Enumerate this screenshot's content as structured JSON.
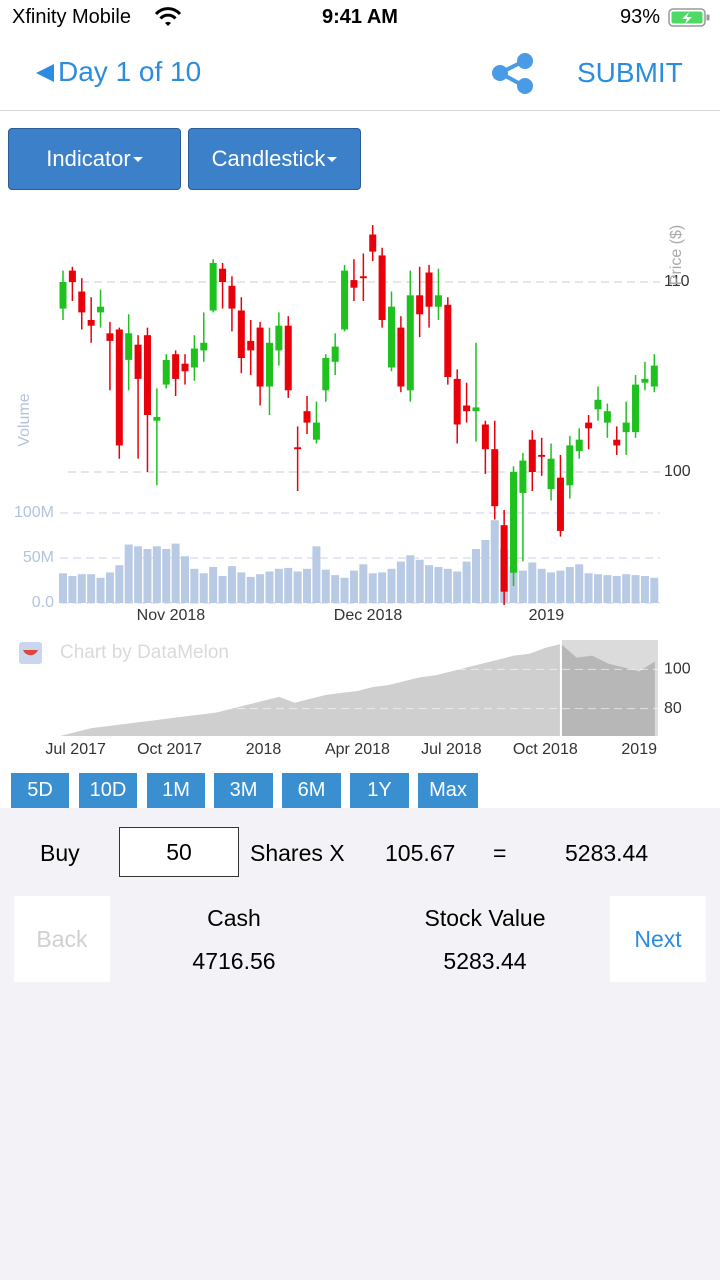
{
  "status_bar": {
    "carrier": "Xfinity Mobile",
    "time": "9:41 AM",
    "battery": "93%"
  },
  "nav": {
    "title": "Day 1 of 10",
    "action": "SUBMIT"
  },
  "toolbar": {
    "indicator": "Indicator",
    "chart_type": "Candlestick"
  },
  "watermark": "Chart by DataMelon",
  "chart_data": [
    {
      "type": "candlestick",
      "categories": [
        null,
        null,
        null,
        null,
        null,
        null,
        null,
        null,
        null,
        null,
        null,
        null,
        null,
        null,
        null,
        null,
        null,
        null,
        null,
        null,
        null,
        null,
        null,
        null,
        null,
        null,
        null,
        null,
        null,
        null,
        null,
        null,
        null,
        null,
        null,
        null,
        null,
        null,
        null,
        null,
        null,
        null,
        null,
        null,
        null,
        null,
        null,
        null,
        null,
        null,
        null,
        null,
        null,
        null,
        null,
        null,
        null,
        null,
        null,
        null,
        null,
        null,
        null,
        null
      ],
      "open": [
        108.6,
        110.6,
        109.5,
        108,
        108.4,
        107.3,
        107.5,
        105.9,
        106.7,
        107.2,
        102.7,
        104.6,
        106.2,
        105.7,
        105.5,
        106.4,
        108.5,
        110.7,
        109.8,
        108.5,
        106.9,
        107.6,
        104.5,
        106.4,
        107.7,
        101.3,
        103.2,
        101.7,
        104.3,
        105.8,
        107.5,
        110.1,
        110.3,
        112.5,
        111.4,
        105.5,
        107.6,
        104.3,
        109.3,
        110.5,
        108.7,
        108.8,
        104.9,
        103.5,
        103.2,
        102.5,
        101.2,
        97.2,
        94.7,
        98.9,
        101.7,
        100.9,
        99.1,
        99.7,
        99.3,
        101.1,
        102.6,
        103.3,
        102.6,
        101.7,
        102.1,
        102.1,
        104.7,
        104.5
      ],
      "high": [
        110.6,
        110.8,
        110.2,
        109.2,
        109.6,
        107.9,
        107.6,
        108.3,
        107.2,
        107.6,
        104.4,
        106.2,
        106.4,
        106.2,
        107.2,
        108.4,
        111.2,
        111,
        110.3,
        109.2,
        108,
        107.9,
        107.6,
        108.4,
        108.2,
        102.4,
        104,
        103.7,
        106.2,
        107.3,
        110.9,
        111.2,
        111.5,
        113,
        111.8,
        109.5,
        108.2,
        110.6,
        110.8,
        110.9,
        110.7,
        109.2,
        105.4,
        104.7,
        106.8,
        102.7,
        102.7,
        98,
        100.3,
        101,
        102.2,
        101.8,
        101.5,
        100.9,
        101.9,
        102.3,
        103,
        104.5,
        103.6,
        102.4,
        103.7,
        105.1,
        105.8,
        106.2
      ],
      "low": [
        108,
        109,
        107.5,
        106.8,
        107.6,
        104.3,
        100.7,
        104.3,
        100.7,
        100,
        99.3,
        104.4,
        104,
        104.6,
        104.8,
        105.8,
        108.4,
        108.6,
        107.4,
        105.2,
        105.1,
        103.5,
        103,
        105.6,
        103.9,
        99,
        102,
        101.5,
        103.7,
        105.1,
        107.4,
        109,
        109,
        111.1,
        107.6,
        105.3,
        104.2,
        103.7,
        107.1,
        107.6,
        108,
        104.6,
        101.5,
        102.6,
        101.6,
        99.9,
        97.5,
        93,
        94,
        95.3,
        99,
        99.8,
        98.5,
        96.6,
        98.6,
        100.7,
        101.2,
        102.7,
        101.8,
        100.9,
        100.9,
        101.8,
        104.3,
        104.2
      ],
      "close": [
        110,
        110,
        108.4,
        107.7,
        108.7,
        106.9,
        101.4,
        107.3,
        104.9,
        103,
        102.9,
        105.9,
        104.9,
        105.3,
        106.5,
        106.8,
        111,
        110,
        108.6,
        106,
        106.4,
        104.5,
        106.8,
        107.7,
        104.3,
        101.2,
        102.6,
        102.6,
        106,
        106.6,
        110.6,
        109.7,
        110.2,
        111.6,
        108,
        108.7,
        104.5,
        109.3,
        108.3,
        108.7,
        109.3,
        105,
        102.5,
        103.2,
        103.4,
        101.2,
        98.2,
        93.7,
        100,
        100.6,
        100,
        100.8,
        100.7,
        96.9,
        101.4,
        101.7,
        102.3,
        103.8,
        103.2,
        101.4,
        102.6,
        104.6,
        104.9,
        105.6
      ],
      "volume": [
        33000000,
        30000000,
        32000000,
        32000000,
        28000000,
        34000000,
        42000000,
        65000000,
        63000000,
        60000000,
        63000000,
        60000000,
        66000000,
        52000000,
        38000000,
        33000000,
        40000000,
        30000000,
        41000000,
        34000000,
        29000000,
        32000000,
        35000000,
        38000000,
        39000000,
        35000000,
        38000000,
        63000000,
        37000000,
        31000000,
        28000000,
        36000000,
        43000000,
        33000000,
        34000000,
        38000000,
        46000000,
        53000000,
        48000000,
        42000000,
        40000000,
        38000000,
        35000000,
        46000000,
        60000000,
        70000000,
        92000000,
        60000000,
        40000000,
        36000000,
        45000000,
        38000000,
        34000000,
        36000000,
        40000000,
        43000000,
        33000000,
        32000000,
        31000000,
        30000000,
        32000000,
        31000000,
        30000000,
        28000000
      ],
      "up_color": "#1fc11f",
      "down_color": "#e8000b",
      "volume_color": "#b9cbe4",
      "xlim": [
        -0.5,
        63.5
      ],
      "xticks": [
        {
          "value": 11.5,
          "label": "Nov 2018"
        },
        {
          "value": 32.5,
          "label": "Dec 2018"
        },
        {
          "value": 51.5,
          "label": "2019"
        }
      ],
      "ylim": [
        93,
        113
      ],
      "yticks": [
        100,
        110
      ],
      "ylabel": "Price ($)",
      "y2lim": [
        0,
        100000000
      ],
      "y2ticks": [
        {
          "value": 0,
          "label": "0.0"
        },
        {
          "value": 50000000,
          "label": "50M"
        },
        {
          "value": 100000000,
          "label": "100M"
        }
      ],
      "y2label": "Volume",
      "grid": true
    },
    {
      "type": "area",
      "x": [
        -0.5,
        0,
        0.5,
        1,
        1.5,
        2,
        2.5,
        3,
        3.5,
        4,
        4.5,
        5,
        5.5,
        6,
        6.5,
        7,
        7.5,
        8,
        8.5,
        9,
        9.5,
        10,
        10.5,
        11,
        11.5,
        12,
        12.5,
        13,
        13.5,
        14,
        14.5,
        15,
        15.5,
        16,
        16.5,
        17,
        17.5,
        18,
        18.5
      ],
      "values": [
        66,
        68,
        70,
        71,
        72,
        73,
        74,
        75,
        76,
        77,
        78,
        80,
        82,
        84,
        86,
        83,
        85,
        87,
        88,
        89,
        91,
        92,
        94,
        96,
        97,
        99,
        101,
        103,
        105,
        107,
        108,
        111,
        113,
        106,
        107,
        103,
        101,
        99,
        104
      ],
      "color": "#cfcfcf",
      "selection": [
        15.5,
        18.6
      ],
      "xlim": [
        -0.5,
        18.6
      ],
      "xticks": [
        {
          "value": 0,
          "label": "Jul 2017"
        },
        {
          "value": 3,
          "label": "Oct 2017"
        },
        {
          "value": 6,
          "label": "2018"
        },
        {
          "value": 9,
          "label": "Apr 2018"
        },
        {
          "value": 12,
          "label": "Jul 2018"
        },
        {
          "value": 15,
          "label": "Oct 2018"
        },
        {
          "value": 18,
          "label": "2019"
        }
      ],
      "ylim": [
        66,
        115
      ],
      "yticks": [
        80,
        100
      ],
      "grid": true
    }
  ],
  "range_buttons": [
    "5D",
    "10D",
    "1M",
    "3M",
    "6M",
    "1Y",
    "Max"
  ],
  "trade": {
    "action": "Buy",
    "shares": "50",
    "shares_label": "Shares X",
    "price": "105.67",
    "equals": "=",
    "total": "5283.44"
  },
  "portfolio": {
    "back": "Back",
    "cash_label": "Cash",
    "cash": "4716.56",
    "stock_label": "Stock Value",
    "stock": "5283.44",
    "next": "Next"
  }
}
